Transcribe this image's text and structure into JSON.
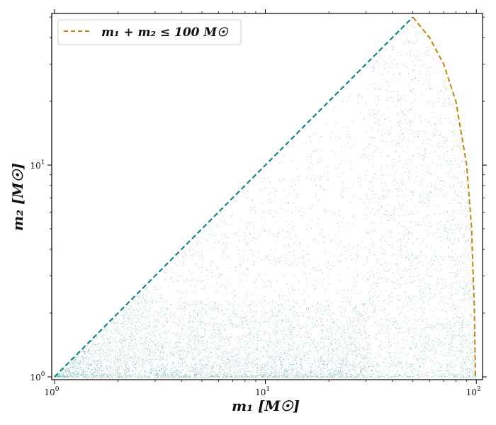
{
  "chart_data": {
    "type": "scatter",
    "title": "",
    "xlabel": "m₁ [M☉]",
    "ylabel": "m₂ [M☉]",
    "xscale": "log",
    "yscale": "log",
    "xlim": [
      0.97,
      107
    ],
    "ylim": [
      0.97,
      52
    ],
    "grid": false,
    "legend_position": "top-left",
    "x_ticks": [
      {
        "value": 1,
        "base": "10",
        "exp": "0"
      },
      {
        "value": 10,
        "base": "10",
        "exp": "1"
      },
      {
        "value": 100,
        "base": "10",
        "exp": "2"
      }
    ],
    "y_ticks": [
      {
        "value": 1,
        "base": "10",
        "exp": "0"
      },
      {
        "value": 10,
        "base": "10",
        "exp": "1"
      }
    ],
    "series": [
      {
        "kind": "points",
        "color": "#007f7f",
        "description_ranges": {
          "m1": [
            1,
            100
          ],
          "m2": [
            1,
            50
          ],
          "constraint": "m2 <= m1 and m1 + m2 <= 100",
          "dense_region_m1": [
            3,
            30
          ],
          "dense_region_m2_max": 2.3
        }
      },
      {
        "kind": "line",
        "style": "dashed",
        "color": "#007f7f",
        "x": [
          1,
          50
        ],
        "y": [
          1,
          50
        ]
      },
      {
        "name": "m₁ + m₂ ≤ 100 M☉",
        "kind": "line",
        "style": "dashed",
        "color": "#c0870c",
        "x": [
          50,
          60,
          70,
          80,
          90,
          95,
          98,
          99
        ],
        "y": [
          50,
          40,
          30,
          20,
          10,
          5,
          2,
          1
        ]
      }
    ]
  }
}
